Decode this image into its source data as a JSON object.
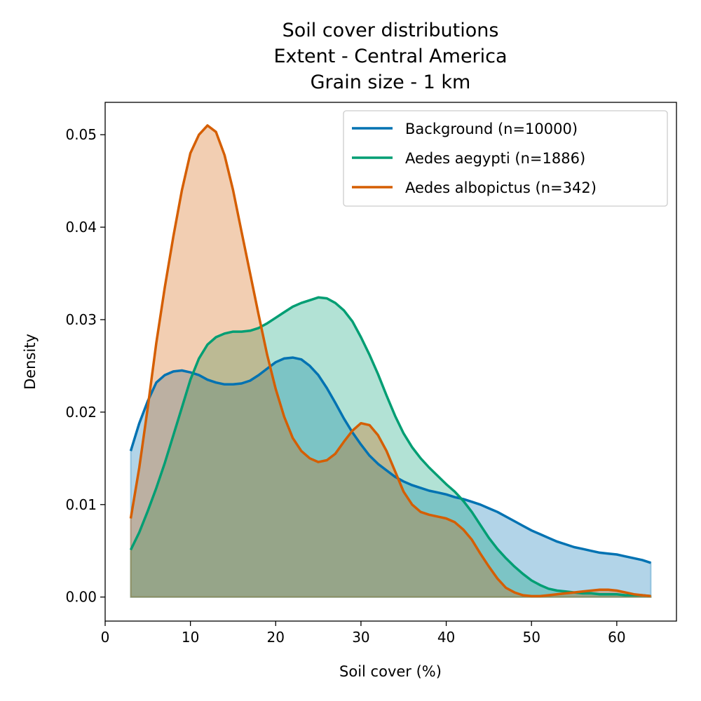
{
  "chart_data": {
    "type": "area",
    "title_lines": [
      "Soil cover distributions",
      "Extent - Central America",
      "Grain size - 1 km"
    ],
    "xlabel": "Soil cover (%)",
    "ylabel": "Density",
    "xlim": [
      0,
      67
    ],
    "ylim": [
      -0.0026,
      0.0535
    ],
    "xticks": [
      0,
      10,
      20,
      30,
      40,
      50,
      60
    ],
    "xtick_labels": [
      "0",
      "10",
      "20",
      "30",
      "40",
      "50",
      "60"
    ],
    "yticks": [
      0.0,
      0.01,
      0.02,
      0.03,
      0.04,
      0.05
    ],
    "ytick_labels": [
      "0.00",
      "0.01",
      "0.02",
      "0.03",
      "0.04",
      "0.05"
    ],
    "grid": false,
    "legend_position": "upper-right",
    "series": [
      {
        "name": "Background (n=10000)",
        "color": "#0072b2",
        "fill": "#0072b2",
        "x": [
          3,
          4,
          5,
          6,
          7,
          8,
          9,
          10,
          11,
          12,
          13,
          14,
          15,
          16,
          17,
          18,
          19,
          20,
          21,
          22,
          23,
          24,
          25,
          26,
          27,
          28,
          29,
          30,
          31,
          32,
          33,
          34,
          35,
          36,
          37,
          38,
          39,
          40,
          41,
          42,
          43,
          44,
          45,
          46,
          47,
          48,
          49,
          50,
          51,
          52,
          53,
          54,
          55,
          56,
          57,
          58,
          59,
          60,
          61,
          62,
          63,
          64
        ],
        "y": [
          0.0158,
          0.0188,
          0.0212,
          0.0232,
          0.024,
          0.0244,
          0.0245,
          0.0243,
          0.024,
          0.0235,
          0.0232,
          0.023,
          0.023,
          0.0231,
          0.0234,
          0.024,
          0.0247,
          0.0254,
          0.0258,
          0.0259,
          0.0257,
          0.025,
          0.024,
          0.0226,
          0.021,
          0.0193,
          0.0178,
          0.0165,
          0.0153,
          0.0144,
          0.0137,
          0.013,
          0.0125,
          0.0121,
          0.0118,
          0.0115,
          0.0113,
          0.0111,
          0.0108,
          0.0106,
          0.0103,
          0.01,
          0.0096,
          0.0092,
          0.0087,
          0.0082,
          0.0077,
          0.0072,
          0.0068,
          0.0064,
          0.006,
          0.0057,
          0.0054,
          0.0052,
          0.005,
          0.0048,
          0.0047,
          0.0046,
          0.0044,
          0.0042,
          0.004,
          0.0037
        ]
      },
      {
        "name": "Aedes aegypti (n=1886)",
        "color": "#009e73",
        "fill": "#009e73",
        "x": [
          3,
          4,
          5,
          6,
          7,
          8,
          9,
          10,
          11,
          12,
          13,
          14,
          15,
          16,
          17,
          18,
          19,
          20,
          21,
          22,
          23,
          24,
          25,
          26,
          27,
          28,
          29,
          30,
          31,
          32,
          33,
          34,
          35,
          36,
          37,
          38,
          39,
          40,
          41,
          42,
          43,
          44,
          45,
          46,
          47,
          48,
          49,
          50,
          51,
          52,
          53,
          54,
          55,
          56,
          57,
          58,
          59,
          60,
          61,
          62,
          63,
          64
        ],
        "y": [
          0.0051,
          0.007,
          0.0093,
          0.0118,
          0.0145,
          0.0175,
          0.0205,
          0.0235,
          0.0258,
          0.0273,
          0.0281,
          0.0285,
          0.0287,
          0.0287,
          0.0288,
          0.0291,
          0.0296,
          0.0302,
          0.0308,
          0.0314,
          0.0318,
          0.0321,
          0.0324,
          0.0323,
          0.0318,
          0.031,
          0.0298,
          0.0281,
          0.0262,
          0.0241,
          0.0218,
          0.0196,
          0.0177,
          0.0162,
          0.015,
          0.014,
          0.0131,
          0.0122,
          0.0114,
          0.0104,
          0.0092,
          0.0078,
          0.0064,
          0.0052,
          0.0042,
          0.0033,
          0.0025,
          0.0018,
          0.0013,
          0.0009,
          0.0007,
          0.0006,
          0.0005,
          0.0004,
          0.0004,
          0.0003,
          0.0003,
          0.0003,
          0.0002,
          0.0002,
          0.0002,
          0.0001
        ]
      },
      {
        "name": "Aedes albopictus (n=342)",
        "color": "#d55e00",
        "fill": "#d55e00",
        "x": [
          3,
          4,
          5,
          6,
          7,
          8,
          9,
          10,
          11,
          12,
          13,
          14,
          15,
          16,
          17,
          18,
          19,
          20,
          21,
          22,
          23,
          24,
          25,
          26,
          27,
          28,
          29,
          30,
          31,
          32,
          33,
          34,
          35,
          36,
          37,
          38,
          39,
          40,
          41,
          42,
          43,
          44,
          45,
          46,
          47,
          48,
          49,
          50,
          51,
          52,
          53,
          54,
          55,
          56,
          57,
          58,
          59,
          60,
          61,
          62,
          63,
          64
        ],
        "y": [
          0.0085,
          0.014,
          0.0205,
          0.0275,
          0.0335,
          0.039,
          0.044,
          0.048,
          0.05,
          0.051,
          0.0503,
          0.0478,
          0.044,
          0.0395,
          0.035,
          0.0305,
          0.0262,
          0.0225,
          0.0195,
          0.0172,
          0.0158,
          0.015,
          0.0146,
          0.0148,
          0.0155,
          0.0168,
          0.018,
          0.0188,
          0.0186,
          0.0175,
          0.0158,
          0.0136,
          0.0114,
          0.01,
          0.0092,
          0.0089,
          0.0087,
          0.0085,
          0.0081,
          0.0073,
          0.0062,
          0.0047,
          0.0033,
          0.002,
          0.001,
          0.0005,
          0.0002,
          0.0001,
          0.0001,
          0.0002,
          0.0003,
          0.0004,
          0.0005,
          0.0006,
          0.0007,
          0.0008,
          0.0008,
          0.0007,
          0.0005,
          0.0003,
          0.0002,
          0.0001
        ]
      }
    ]
  }
}
